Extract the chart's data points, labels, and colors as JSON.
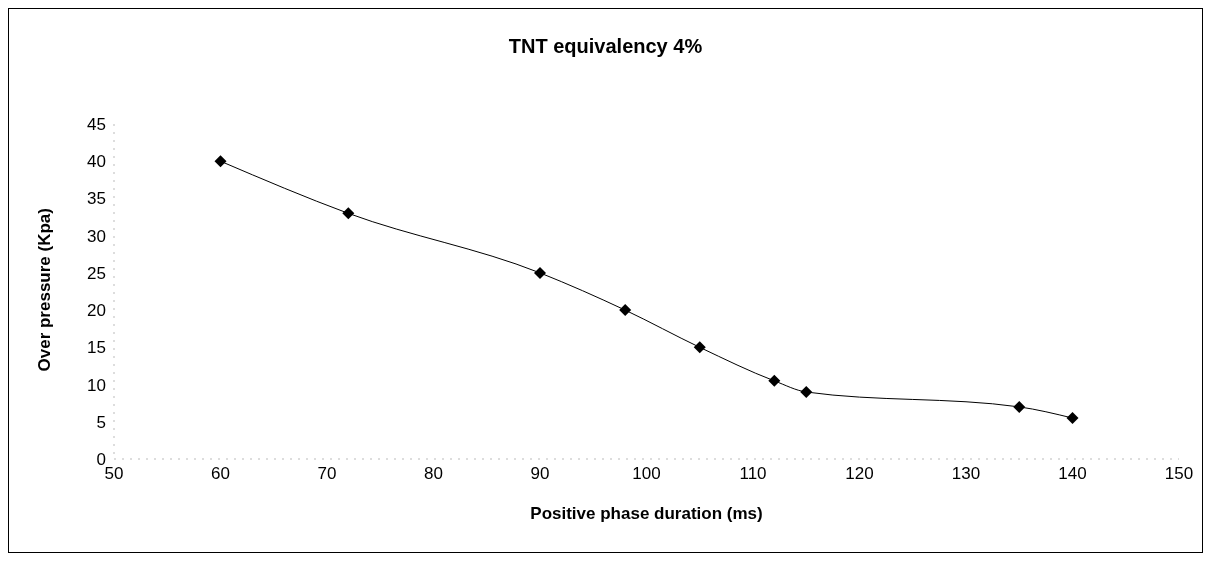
{
  "chart_data": {
    "type": "line",
    "title": "TNT equivalency 4%",
    "xlabel": "Positive phase duration (ms)",
    "ylabel": "Over pressure (Kpa)",
    "x": [
      60,
      72,
      90,
      98,
      105,
      112,
      115,
      135,
      140
    ],
    "series": [
      {
        "color": "#000000",
        "values": [
          40,
          33,
          25,
          20,
          15,
          10.5,
          9,
          7,
          5.5
        ]
      }
    ],
    "xlim": [
      50,
      150
    ],
    "xticks": [
      50,
      60,
      70,
      80,
      90,
      100,
      110,
      120,
      130,
      140,
      150
    ],
    "ylim": [
      0,
      45
    ],
    "yticks": [
      0,
      5,
      10,
      15,
      20,
      25,
      30,
      35,
      40,
      45
    ],
    "grid": false,
    "legend": false,
    "marker": "diamond",
    "line_style": "solid"
  }
}
